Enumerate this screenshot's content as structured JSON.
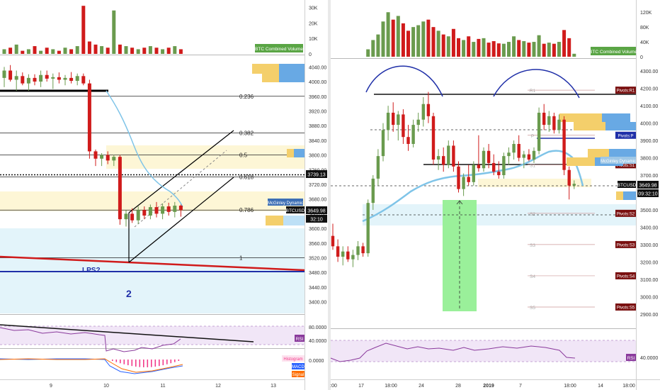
{
  "colors": {
    "up": "#6a9b4e",
    "down": "#d01b1b",
    "ma": "#7fc4e8",
    "rsi": "#8a3a9c",
    "rsi_band": "#f1e6f7",
    "fib_band": "#fdf6d6",
    "cyan_band": "#e3f4fa",
    "green_box": "#9af09a",
    "pivot_bg": "#7a1010",
    "price_bg": "#111111",
    "volume_label_bg": "#5aa545",
    "macd_label": "#2962ff",
    "signal_label": "#ff6d00",
    "histogram_label": "#f23b8a",
    "rsi_label_bg": "#8a3a9c",
    "pivot_p_bg": "#1f2fa8"
  },
  "left_chart": {
    "volume_label": "BTC Combined Volume",
    "volume_axis": [
      "30K",
      "20K",
      "10K",
      "0"
    ],
    "price_axis": [
      "4040.00",
      "4000.00",
      "3960.00",
      "3920.00",
      "3880.00",
      "3840.00",
      "3800.00",
      "3760.00",
      "3720.00",
      "3680.00",
      "3640.00",
      "3600.00",
      "3560.00",
      "3520.00",
      "3480.00",
      "3440.00",
      "3400.00"
    ],
    "time_axis": [
      "9",
      "10",
      "11",
      "12",
      "13"
    ],
    "fib_levels": [
      "0.236",
      "0.382",
      "0.5",
      "0.618",
      "0.786",
      "1"
    ],
    "price_tag": "3649.98",
    "countdown_tag": "32:10",
    "level_tag": "3739.13",
    "mcginley_label": "McGinley Dynamic",
    "ticker_tag": "BTCUSD",
    "lps_label": "LPS?",
    "wave_label": "2",
    "rsi_label": "RSI",
    "rsi_axis": [
      "80.0000",
      "40.0000"
    ],
    "macd_axis": "0.0000",
    "histogram_label": "Histogram",
    "macd_label": "MACD",
    "signal_label": "Signal"
  },
  "right_chart": {
    "volume_label": "BTC Combined Volume",
    "volume_axis": [
      "120K",
      "80K",
      "40K",
      "0"
    ],
    "price_axis": [
      "4300.00",
      "4200.00",
      "4100.00",
      "4000.00",
      "3900.00",
      "3800.00",
      "3700.00",
      "3600.00",
      "3500.00",
      "3400.00",
      "3300.00",
      "3200.00",
      "3100.00",
      "3000.00",
      "2900.00"
    ],
    "time_axis": [
      ":00",
      "17",
      "18:00",
      "24",
      "28",
      "2019",
      "7",
      "18:00",
      "14",
      "18:00"
    ],
    "pivot_markers": [
      "R1",
      "P",
      "S1",
      "S2",
      "S3",
      "S4",
      "S5"
    ],
    "pivot_tags": [
      "Pivots:R1",
      "Pivots:P",
      "Pivots:S1",
      "Pivots:S2",
      "Pivots:S3",
      "Pivots:S4",
      "Pivots:S5"
    ],
    "ticker_tag": "BTCUSD",
    "price_tag": "3649.98",
    "countdown_tag": "09:32:10",
    "mcginley_label": "McGinley Dynamic",
    "rsi_label": "RSI",
    "rsi_axis": "40.0000"
  },
  "chart_data": [
    {
      "type": "candlestick",
      "title": "",
      "timeframe_note": "left panel",
      "x_ticks": [
        "9",
        "10",
        "11",
        "12",
        "13"
      ],
      "ylim": [
        3380,
        4060
      ],
      "candles": [
        {
          "o": 4010,
          "h": 4040,
          "l": 3985,
          "c": 4030
        },
        {
          "o": 4030,
          "h": 4045,
          "l": 4000,
          "c": 4005
        },
        {
          "o": 4005,
          "h": 4030,
          "l": 3975,
          "c": 4015
        },
        {
          "o": 4015,
          "h": 4025,
          "l": 3990,
          "c": 3995
        },
        {
          "o": 3995,
          "h": 4020,
          "l": 3975,
          "c": 4010
        },
        {
          "o": 4010,
          "h": 4020,
          "l": 3990,
          "c": 4000
        },
        {
          "o": 4000,
          "h": 4030,
          "l": 3985,
          "c": 4018
        },
        {
          "o": 4018,
          "h": 4030,
          "l": 4000,
          "c": 4008
        },
        {
          "o": 4008,
          "h": 4022,
          "l": 3980,
          "c": 4012
        },
        {
          "o": 4012,
          "h": 4025,
          "l": 3995,
          "c": 4005
        },
        {
          "o": 4005,
          "h": 4018,
          "l": 3990,
          "c": 4010
        },
        {
          "o": 4010,
          "h": 4026,
          "l": 3995,
          "c": 4002
        },
        {
          "o": 4002,
          "h": 4022,
          "l": 3990,
          "c": 4015
        },
        {
          "o": 4015,
          "h": 4022,
          "l": 3990,
          "c": 3995
        },
        {
          "o": 3995,
          "h": 4005,
          "l": 3790,
          "c": 3810
        },
        {
          "o": 3810,
          "h": 3815,
          "l": 3770,
          "c": 3790
        },
        {
          "o": 3790,
          "h": 3805,
          "l": 3770,
          "c": 3800
        },
        {
          "o": 3800,
          "h": 3810,
          "l": 3775,
          "c": 3785
        },
        {
          "o": 3785,
          "h": 3800,
          "l": 3770,
          "c": 3795
        },
        {
          "o": 3795,
          "h": 3800,
          "l": 3610,
          "c": 3625
        },
        {
          "o": 3625,
          "h": 3650,
          "l": 3605,
          "c": 3640
        },
        {
          "o": 3640,
          "h": 3655,
          "l": 3615,
          "c": 3622
        },
        {
          "o": 3622,
          "h": 3660,
          "l": 3612,
          "c": 3650
        },
        {
          "o": 3650,
          "h": 3660,
          "l": 3625,
          "c": 3635
        },
        {
          "o": 3635,
          "h": 3665,
          "l": 3625,
          "c": 3658
        },
        {
          "o": 3658,
          "h": 3672,
          "l": 3630,
          "c": 3640
        },
        {
          "o": 3640,
          "h": 3668,
          "l": 3625,
          "c": 3660
        },
        {
          "o": 3660,
          "h": 3670,
          "l": 3635,
          "c": 3645
        },
        {
          "o": 3645,
          "h": 3672,
          "l": 3630,
          "c": 3662
        },
        {
          "o": 3662,
          "h": 3665,
          "l": 3632,
          "c": 3650
        }
      ],
      "volume": [
        3,
        4,
        6,
        2,
        3,
        5,
        2,
        4,
        3,
        2,
        4,
        3,
        5,
        31,
        8,
        6,
        5,
        4,
        28,
        6,
        5,
        4,
        3,
        4,
        5,
        4,
        3,
        4,
        5,
        3
      ],
      "fib_values": [
        3960,
        3860,
        3800,
        3740,
        3650,
        3520
      ]
    },
    {
      "type": "candlestick",
      "title": "",
      "timeframe_note": "right panel",
      "x_ticks": [
        ":00",
        "17",
        "18:00",
        "24",
        "28",
        "2019",
        "7",
        "18:00",
        "14",
        "18:00"
      ],
      "ylim": [
        2850,
        4350
      ],
      "candles": [
        {
          "o": 3350,
          "h": 3420,
          "l": 3270,
          "c": 3290
        },
        {
          "o": 3290,
          "h": 3330,
          "l": 3200,
          "c": 3230
        },
        {
          "o": 3230,
          "h": 3290,
          "l": 3180,
          "c": 3260
        },
        {
          "o": 3260,
          "h": 3290,
          "l": 3200,
          "c": 3215
        },
        {
          "o": 3215,
          "h": 3270,
          "l": 3170,
          "c": 3240
        },
        {
          "o": 3240,
          "h": 3320,
          "l": 3210,
          "c": 3290
        },
        {
          "o": 3290,
          "h": 3310,
          "l": 3230,
          "c": 3250
        },
        {
          "o": 3250,
          "h": 3560,
          "l": 3230,
          "c": 3540
        },
        {
          "o": 3540,
          "h": 3700,
          "l": 3500,
          "c": 3680
        },
        {
          "o": 3680,
          "h": 3850,
          "l": 3640,
          "c": 3810
        },
        {
          "o": 3810,
          "h": 4000,
          "l": 3780,
          "c": 3960
        },
        {
          "o": 3960,
          "h": 4100,
          "l": 3900,
          "c": 4060
        },
        {
          "o": 4060,
          "h": 4120,
          "l": 3950,
          "c": 3990
        },
        {
          "o": 3990,
          "h": 4070,
          "l": 3900,
          "c": 4050
        },
        {
          "o": 4050,
          "h": 4080,
          "l": 3880,
          "c": 3920
        },
        {
          "o": 3920,
          "h": 3990,
          "l": 3840,
          "c": 3880
        },
        {
          "o": 3880,
          "h": 4020,
          "l": 3860,
          "c": 3990
        },
        {
          "o": 3990,
          "h": 4060,
          "l": 3950,
          "c": 4020
        },
        {
          "o": 4020,
          "h": 4150,
          "l": 3980,
          "c": 4110
        },
        {
          "o": 4110,
          "h": 4180,
          "l": 4000,
          "c": 4040
        },
        {
          "o": 4040,
          "h": 4060,
          "l": 3760,
          "c": 3790
        },
        {
          "o": 3790,
          "h": 3850,
          "l": 3730,
          "c": 3810
        },
        {
          "o": 3810,
          "h": 3860,
          "l": 3720,
          "c": 3760
        },
        {
          "o": 3760,
          "h": 3900,
          "l": 3740,
          "c": 3870
        },
        {
          "o": 3870,
          "h": 3900,
          "l": 3720,
          "c": 3750
        },
        {
          "o": 3750,
          "h": 3780,
          "l": 3600,
          "c": 3620
        },
        {
          "o": 3620,
          "h": 3710,
          "l": 3580,
          "c": 3690
        },
        {
          "o": 3690,
          "h": 3760,
          "l": 3640,
          "c": 3660
        },
        {
          "o": 3660,
          "h": 3780,
          "l": 3640,
          "c": 3760
        },
        {
          "o": 3760,
          "h": 3930,
          "l": 3720,
          "c": 3740
        },
        {
          "o": 3740,
          "h": 3860,
          "l": 3720,
          "c": 3840
        },
        {
          "o": 3840,
          "h": 3880,
          "l": 3740,
          "c": 3770
        },
        {
          "o": 3770,
          "h": 3820,
          "l": 3700,
          "c": 3720
        },
        {
          "o": 3720,
          "h": 3780,
          "l": 3680,
          "c": 3700
        },
        {
          "o": 3700,
          "h": 3830,
          "l": 3680,
          "c": 3810
        },
        {
          "o": 3810,
          "h": 3860,
          "l": 3760,
          "c": 3830
        },
        {
          "o": 3830,
          "h": 3900,
          "l": 3790,
          "c": 3880
        },
        {
          "o": 3880,
          "h": 3930,
          "l": 3780,
          "c": 3800
        },
        {
          "o": 3800,
          "h": 3840,
          "l": 3740,
          "c": 3820
        },
        {
          "o": 3820,
          "h": 3850,
          "l": 3780,
          "c": 3790
        },
        {
          "o": 3790,
          "h": 3860,
          "l": 3770,
          "c": 3840
        },
        {
          "o": 3840,
          "h": 4090,
          "l": 3820,
          "c": 4060
        },
        {
          "o": 4060,
          "h": 4110,
          "l": 3960,
          "c": 3990
        },
        {
          "o": 3990,
          "h": 4070,
          "l": 3950,
          "c": 4040
        },
        {
          "o": 4040,
          "h": 4060,
          "l": 3940,
          "c": 3960
        },
        {
          "o": 3960,
          "h": 4050,
          "l": 3940,
          "c": 4020
        },
        {
          "o": 4020,
          "h": 4040,
          "l": 3700,
          "c": 3730
        },
        {
          "o": 3730,
          "h": 3750,
          "l": 3560,
          "c": 3640
        },
        {
          "o": 3640,
          "h": 3670,
          "l": 3620,
          "c": 3650
        }
      ],
      "volume": [
        0,
        0,
        0,
        0,
        0,
        0,
        0,
        20,
        45,
        60,
        95,
        120,
        100,
        110,
        90,
        70,
        80,
        85,
        95,
        100,
        80,
        70,
        60,
        55,
        75,
        50,
        45,
        55,
        40,
        48,
        50,
        38,
        42,
        36,
        35,
        40,
        55,
        45,
        42,
        38,
        40,
        58,
        35,
        38,
        35,
        40,
        72,
        50,
        8
      ],
      "pivots": {
        "R1": 4190,
        "P": 3930,
        "S1": 3760,
        "S2": 3480,
        "S3": 3300,
        "S4": 3120,
        "S5": 2940
      }
    }
  ]
}
